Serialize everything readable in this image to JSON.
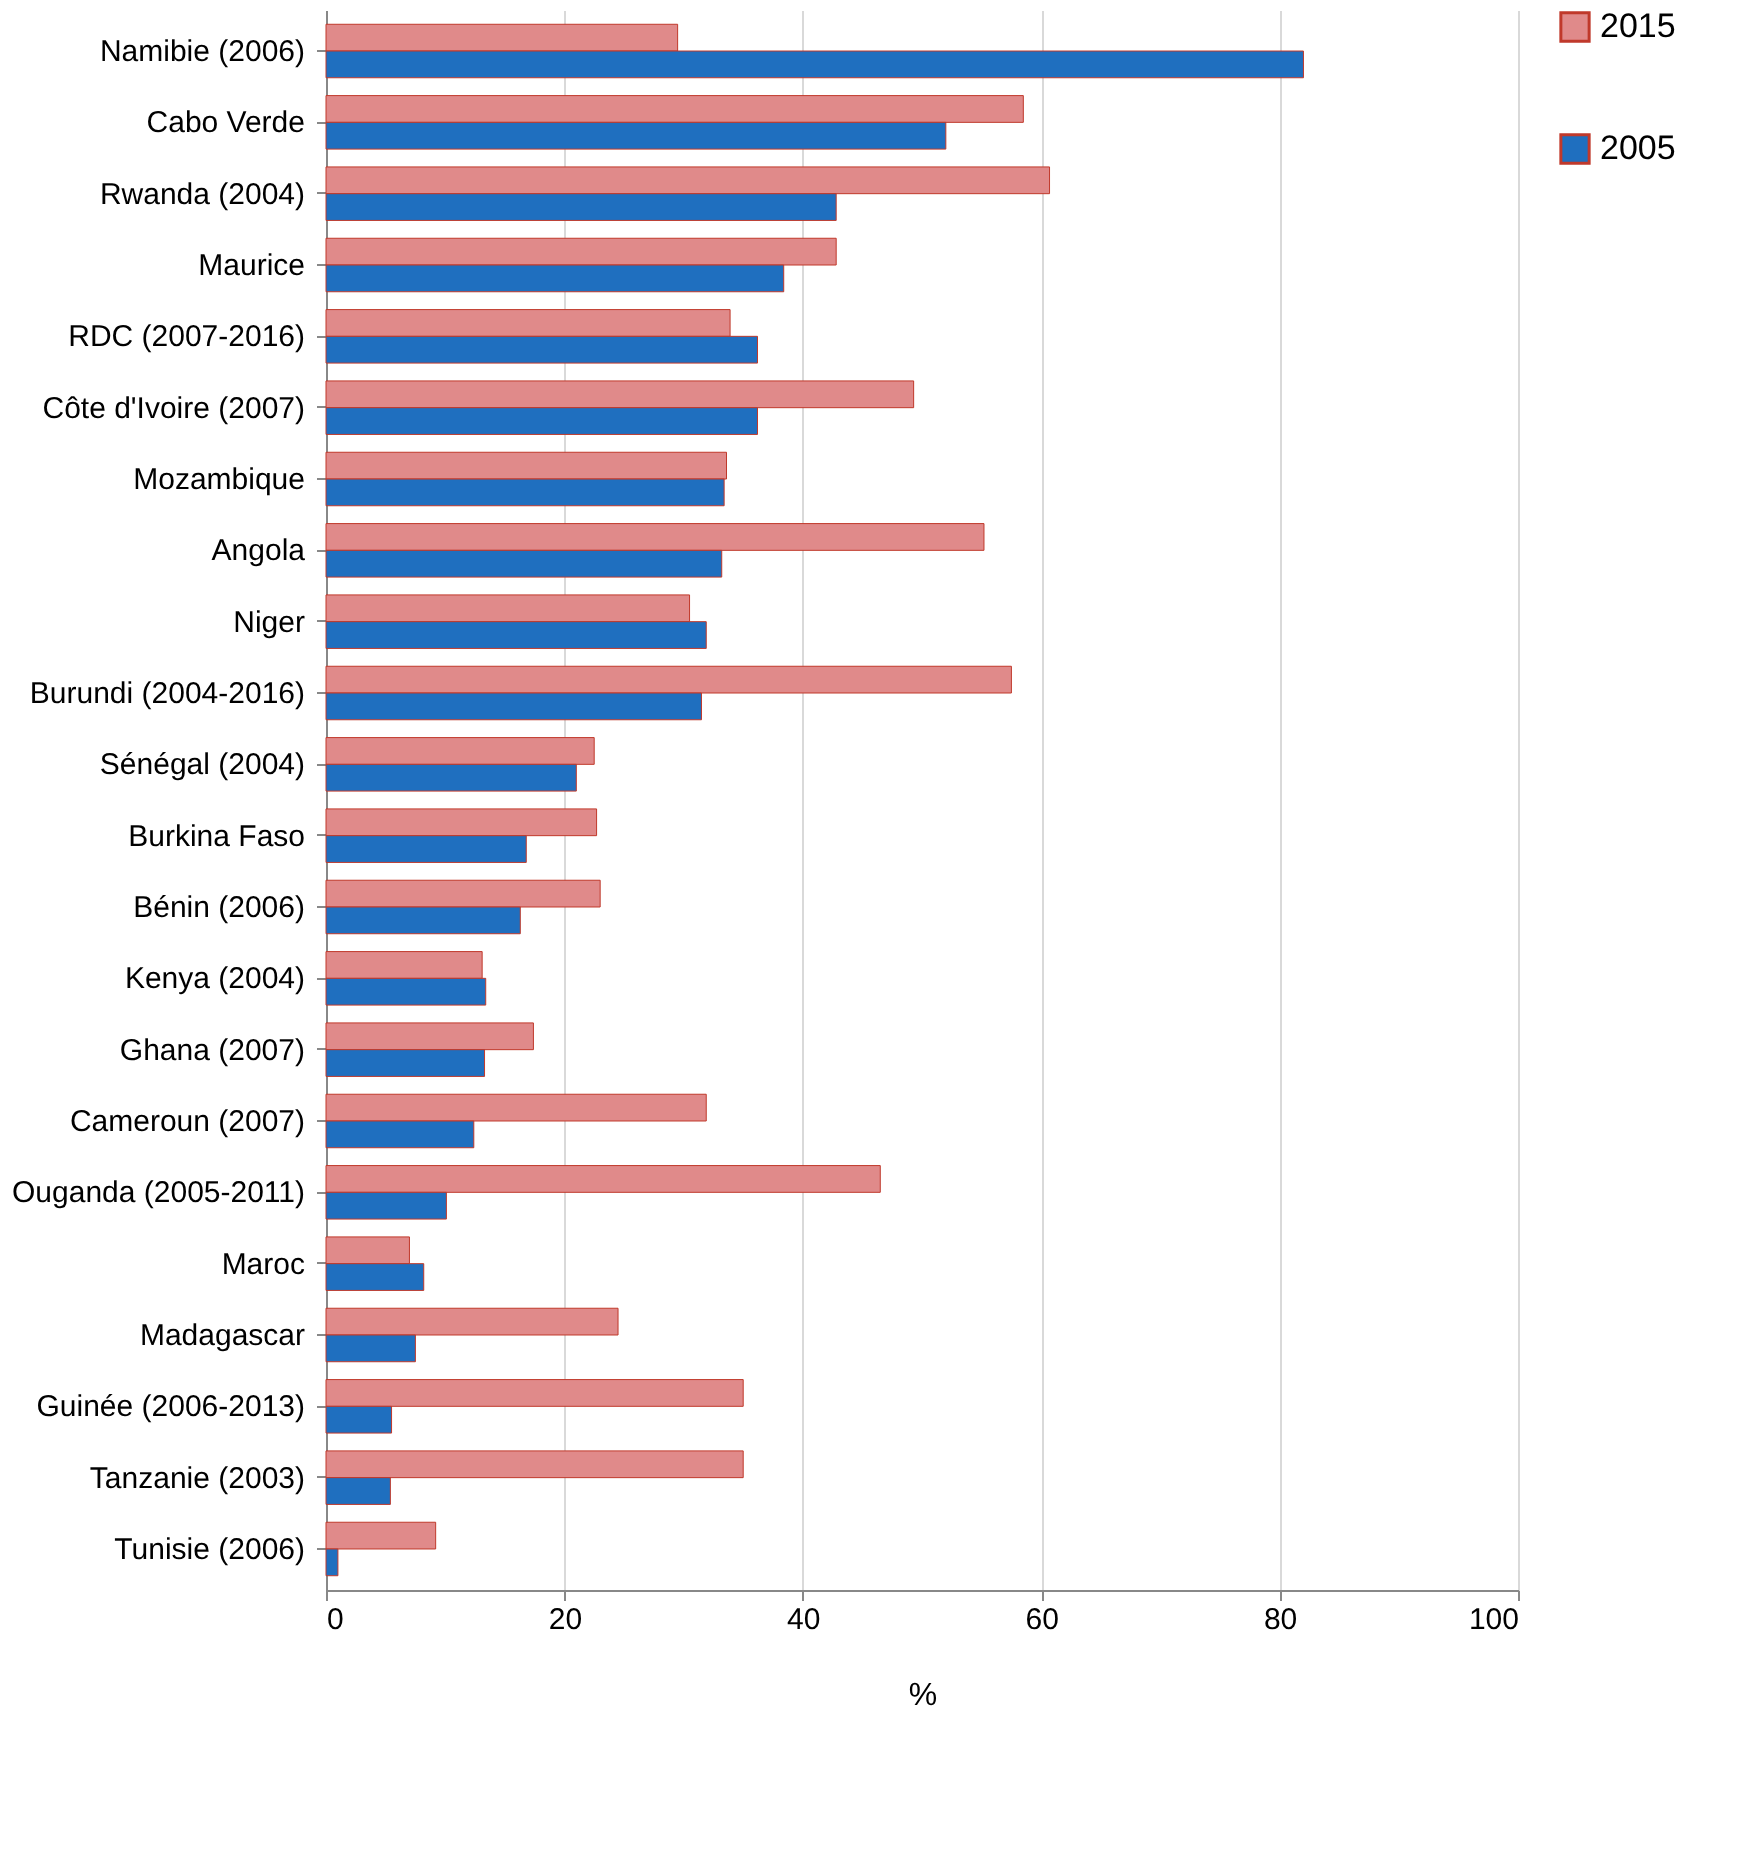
{
  "chart_data": {
    "type": "bar",
    "orientation": "horizontal",
    "xlabel": "%",
    "categories": [
      "Namibie (2006)",
      "Cabo Verde",
      "Rwanda (2004)",
      "Maurice",
      "RDC (2007-2016)",
      "Côte d'Ivoire (2007)",
      "Mozambique",
      "Angola",
      "Niger",
      "Burundi (2004-2016)",
      "Sénégal (2004)",
      "Burkina Faso",
      "Bénin (2006)",
      "Kenya (2004)",
      "Ghana (2007)",
      "Cameroun (2007)",
      "Ouganda (2005-2011)",
      "Maroc",
      "Madagascar",
      "Guinée (2006-2013)",
      "Tanzanie (2003)",
      "Tunisie (2006)"
    ],
    "series": [
      {
        "name": "2015",
        "color": "#e08a8a",
        "values": [
          29.5,
          58.5,
          60.7,
          42.8,
          33.9,
          49.3,
          33.6,
          55.2,
          30.5,
          57.5,
          22.5,
          22.7,
          23,
          13.1,
          17.4,
          31.9,
          46.5,
          7,
          24.5,
          35,
          35,
          9.2
        ]
      },
      {
        "name": "2005",
        "color": "#1f6fbf",
        "values": [
          82,
          52,
          42.8,
          38.4,
          36.2,
          36.2,
          33.4,
          33.2,
          31.9,
          31.5,
          21,
          16.8,
          16.3,
          13.4,
          13.3,
          12.4,
          10.1,
          8.2,
          7.5,
          5.5,
          5.4,
          1
        ]
      }
    ],
    "xlim": [
      0,
      100
    ],
    "xticks": [
      0,
      20,
      40,
      60,
      80,
      100
    ],
    "grid": "x",
    "legend": "right"
  }
}
